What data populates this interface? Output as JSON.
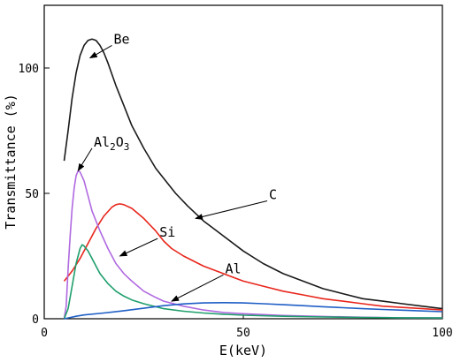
{
  "chart_data": {
    "type": "line",
    "title": "",
    "xlabel": "E(keV)",
    "ylabel": "Transmittance (%)",
    "xlim": [
      0,
      100
    ],
    "ylim": [
      0,
      125
    ],
    "xticks": [
      0,
      50,
      100
    ],
    "yticks": [
      0,
      50,
      100
    ],
    "grid": false,
    "series": [
      {
        "name": "Be",
        "color": "#1a1a1a",
        "points": [
          [
            5,
            63
          ],
          [
            6,
            75
          ],
          [
            7,
            88
          ],
          [
            8,
            98
          ],
          [
            9,
            105
          ],
          [
            10,
            109
          ],
          [
            11,
            111
          ],
          [
            12,
            111.5
          ],
          [
            13,
            111
          ],
          [
            14,
            109
          ],
          [
            15,
            106
          ],
          [
            16,
            102
          ],
          [
            18,
            93
          ],
          [
            20,
            85
          ],
          [
            22,
            77
          ],
          [
            25,
            68
          ],
          [
            28,
            60
          ],
          [
            30,
            56
          ],
          [
            33,
            50
          ],
          [
            36,
            45
          ],
          [
            40,
            39
          ],
          [
            45,
            33
          ],
          [
            50,
            27
          ],
          [
            55,
            22
          ],
          [
            60,
            18
          ],
          [
            65,
            15
          ],
          [
            70,
            12
          ],
          [
            75,
            10
          ],
          [
            80,
            8
          ],
          [
            85,
            7
          ],
          [
            90,
            6
          ],
          [
            95,
            5
          ],
          [
            100,
            4
          ]
        ]
      },
      {
        "name": "C",
        "color": "#e8261c",
        "points": [
          [
            5,
            15
          ],
          [
            7,
            19
          ],
          [
            9,
            24
          ],
          [
            11,
            30
          ],
          [
            13,
            36
          ],
          [
            15,
            41
          ],
          [
            17,
            44.5
          ],
          [
            18,
            45.5
          ],
          [
            19,
            45.8
          ],
          [
            20,
            45.5
          ],
          [
            22,
            44
          ],
          [
            25,
            40
          ],
          [
            28,
            35
          ],
          [
            30,
            31
          ],
          [
            32,
            28
          ],
          [
            35,
            25
          ],
          [
            40,
            21
          ],
          [
            45,
            18
          ],
          [
            50,
            15
          ],
          [
            55,
            13
          ],
          [
            60,
            11
          ],
          [
            65,
            9.5
          ],
          [
            70,
            8
          ],
          [
            75,
            7
          ],
          [
            80,
            6
          ],
          [
            85,
            5
          ],
          [
            90,
            4.5
          ],
          [
            95,
            4
          ],
          [
            100,
            3.5
          ]
        ]
      },
      {
        "name": "Al2O3",
        "color": "#b069e0",
        "points": [
          [
            5,
            0
          ],
          [
            5.5,
            5
          ],
          [
            6,
            20
          ],
          [
            6.5,
            33
          ],
          [
            7,
            44
          ],
          [
            7.5,
            52
          ],
          [
            8,
            57
          ],
          [
            8.5,
            59
          ],
          [
            9,
            58.5
          ],
          [
            10,
            55
          ],
          [
            11,
            49
          ],
          [
            12,
            43
          ],
          [
            14,
            35
          ],
          [
            16,
            28
          ],
          [
            18,
            22
          ],
          [
            20,
            18
          ],
          [
            22,
            15
          ],
          [
            25,
            11
          ],
          [
            28,
            8.5
          ],
          [
            30,
            7
          ],
          [
            35,
            5
          ],
          [
            40,
            3.5
          ],
          [
            45,
            2.5
          ],
          [
            50,
            2
          ],
          [
            60,
            1.3
          ],
          [
            70,
            0.9
          ],
          [
            80,
            0.6
          ],
          [
            90,
            0.4
          ],
          [
            100,
            0.3
          ]
        ]
      },
      {
        "name": "Si",
        "color": "#1e9e6c",
        "points": [
          [
            5,
            0
          ],
          [
            6,
            4
          ],
          [
            7,
            13
          ],
          [
            8,
            22
          ],
          [
            9,
            28
          ],
          [
            9.5,
            29.5
          ],
          [
            10,
            29
          ],
          [
            11,
            27
          ],
          [
            12,
            24
          ],
          [
            13,
            21
          ],
          [
            14,
            18
          ],
          [
            16,
            14
          ],
          [
            18,
            11
          ],
          [
            20,
            9
          ],
          [
            22,
            7.5
          ],
          [
            25,
            6
          ],
          [
            28,
            4.8
          ],
          [
            30,
            4
          ],
          [
            35,
            3
          ],
          [
            40,
            2.3
          ],
          [
            45,
            1.8
          ],
          [
            50,
            1.4
          ],
          [
            60,
            1
          ],
          [
            70,
            0.7
          ],
          [
            80,
            0.5
          ],
          [
            90,
            0.4
          ],
          [
            100,
            0.3
          ]
        ]
      },
      {
        "name": "Al",
        "color": "#1f5fc6",
        "points": [
          [
            5,
            0
          ],
          [
            6,
            0.3
          ],
          [
            8,
            1
          ],
          [
            10,
            1.5
          ],
          [
            15,
            2.3
          ],
          [
            20,
            3.2
          ],
          [
            25,
            4.2
          ],
          [
            30,
            5.2
          ],
          [
            35,
            5.9
          ],
          [
            40,
            6.3
          ],
          [
            45,
            6.4
          ],
          [
            50,
            6.3
          ],
          [
            55,
            6
          ],
          [
            60,
            5.6
          ],
          [
            65,
            5.2
          ],
          [
            70,
            4.8
          ],
          [
            75,
            4.4
          ],
          [
            80,
            4
          ],
          [
            85,
            3.7
          ],
          [
            90,
            3.4
          ],
          [
            95,
            3.1
          ],
          [
            100,
            2.8
          ]
        ]
      }
    ],
    "annotations": [
      {
        "text_main": "Be",
        "text_sub": "",
        "text_tail": "",
        "arrow_from": [
          17,
          109
        ],
        "arrow_to": [
          11.5,
          104
        ]
      },
      {
        "text_main": "Al",
        "text_sub": "2",
        "text_tail": "O",
        "text_sub2": "3",
        "arrow_from": [
          12,
          68
        ],
        "arrow_to": [
          8.5,
          59
        ]
      },
      {
        "text_main": "C",
        "text_sub": "",
        "text_tail": "",
        "arrow_from": [
          56,
          47
        ],
        "arrow_to": [
          38,
          40
        ]
      },
      {
        "text_main": "Si",
        "text_sub": "",
        "text_tail": "",
        "arrow_from": [
          28.5,
          32
        ],
        "arrow_to": [
          19,
          25
        ]
      },
      {
        "text_main": "Al",
        "text_sub": "",
        "text_tail": "",
        "arrow_from": [
          45,
          17.5
        ],
        "arrow_to": [
          32,
          7
        ]
      }
    ]
  }
}
